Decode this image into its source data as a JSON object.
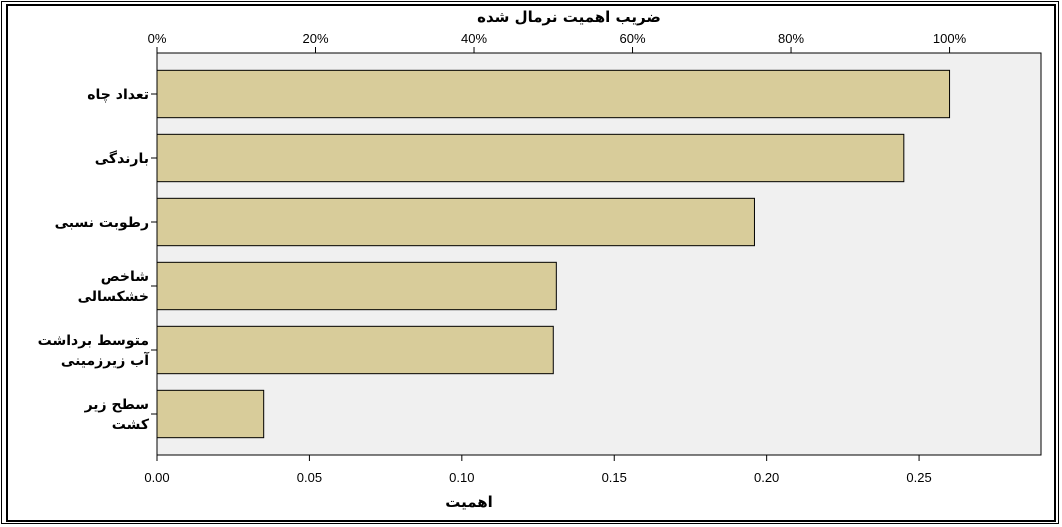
{
  "chart_data": {
    "type": "bar",
    "orientation": "horizontal",
    "title": "ضریب اهمیت نرمال شده",
    "xlabel": "اهمیت",
    "categories": [
      [
        "تعداد چاه"
      ],
      [
        "بارندگی"
      ],
      [
        "رطوبت نسبی"
      ],
      [
        "شاخص",
        "خشکسالی"
      ],
      [
        "متوسط برداشت",
        "آب زیرزمینی"
      ],
      [
        "سطح زیر",
        "کشت"
      ]
    ],
    "values": [
      0.26,
      0.245,
      0.196,
      0.131,
      0.13,
      0.035
    ],
    "xlim": [
      0,
      0.29
    ],
    "bottom_ticks": [
      "0.00",
      "0.05",
      "0.10",
      "0.15",
      "0.20",
      "0.25"
    ],
    "top_ticks": [
      "0%",
      "20%",
      "40%",
      "60%",
      "80%",
      "100%"
    ],
    "top_axis_max_value": 0.26,
    "grid": false,
    "colors": {
      "bar": "#d8cc9a",
      "bar_edge": "#000000",
      "plot_bg": "#f0f0f0"
    }
  }
}
